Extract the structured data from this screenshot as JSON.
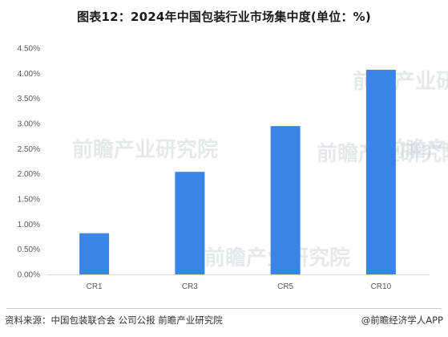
{
  "chart_data": {
    "type": "bar",
    "title": "图表12：2024年中国包装行业市场集中度(单位：%)",
    "categories": [
      "CR1",
      "CR3",
      "CR5",
      "CR10"
    ],
    "values": [
      0.82,
      2.04,
      2.95,
      4.07
    ],
    "ylim": [
      0,
      4.5
    ],
    "yticks": [
      "0.00%",
      "0.50%",
      "1.00%",
      "1.50%",
      "2.00%",
      "2.50%",
      "3.00%",
      "3.50%",
      "4.00%",
      "4.50%"
    ],
    "xlabel": "",
    "ylabel": "",
    "bar_color": "#3a84e6",
    "grid": false
  },
  "watermark_text": "前瞻产业研究院",
  "footer": {
    "source": "资料来源：中国包装联合会 公司公报 前瞻产业研究院",
    "credit": "@前瞻经济学人APP"
  }
}
